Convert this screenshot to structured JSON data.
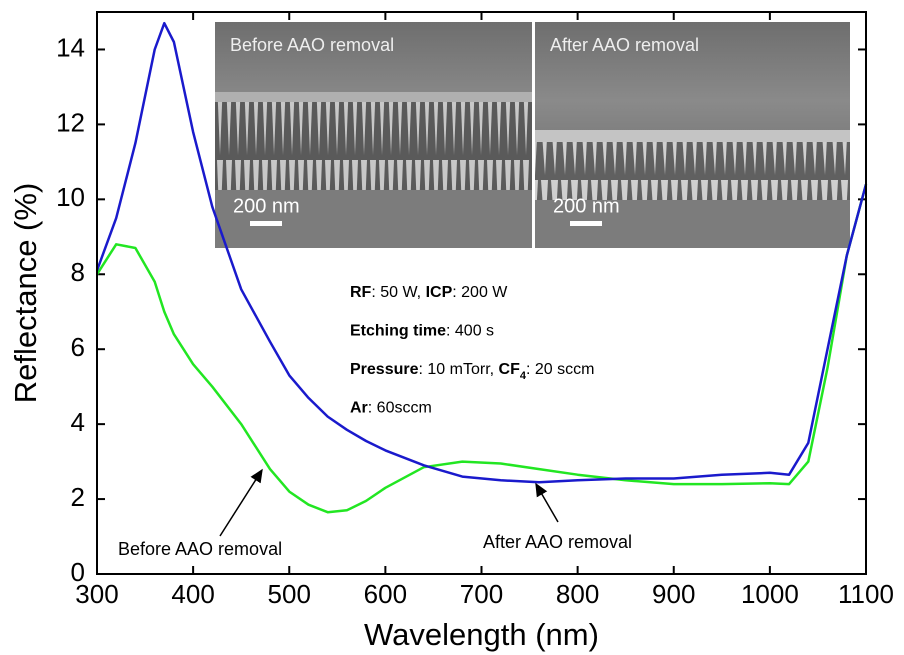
{
  "chart_data": {
    "type": "line",
    "xlabel": "Wavelength (nm)",
    "ylabel": "Reflectance (%)",
    "x": [
      300,
      320,
      340,
      360,
      370,
      380,
      400,
      420,
      450,
      480,
      500,
      520,
      540,
      560,
      580,
      600,
      640,
      680,
      720,
      760,
      800,
      850,
      900,
      950,
      1000,
      1020,
      1040,
      1060,
      1080,
      1100
    ],
    "series": [
      {
        "name": "Before AAO removal",
        "color": "#22e622",
        "values": [
          8.0,
          8.8,
          8.7,
          7.8,
          7.0,
          6.4,
          5.6,
          5.0,
          4.0,
          2.8,
          2.2,
          1.85,
          1.65,
          1.7,
          1.95,
          2.3,
          2.85,
          3.0,
          2.95,
          2.8,
          2.65,
          2.5,
          2.4,
          2.4,
          2.42,
          2.4,
          3.0,
          5.5,
          8.5,
          10.4
        ]
      },
      {
        "name": "After AAO removal",
        "color": "#1a1acc",
        "values": [
          8.1,
          9.5,
          11.5,
          14.0,
          14.7,
          14.2,
          11.8,
          9.8,
          7.6,
          6.2,
          5.3,
          4.7,
          4.2,
          3.85,
          3.55,
          3.3,
          2.9,
          2.6,
          2.5,
          2.45,
          2.5,
          2.55,
          2.55,
          2.65,
          2.7,
          2.65,
          3.5,
          6.0,
          8.5,
          10.4
        ]
      }
    ],
    "xlim": [
      300,
      1100
    ],
    "xticks": [
      300,
      400,
      500,
      600,
      700,
      800,
      900,
      1000,
      1100
    ],
    "ylim": [
      0,
      15
    ],
    "yticks": [
      0,
      2,
      4,
      6,
      8,
      10,
      12,
      14
    ],
    "conditions": [
      [
        {
          "text": "RF",
          "bold": true
        },
        {
          "text": ": 50 W, "
        },
        {
          "text": "ICP",
          "bold": true
        },
        {
          "text": ": 200 W"
        }
      ],
      [
        {
          "text": "Etching time",
          "bold": true
        },
        {
          "text": ": 400 s"
        }
      ],
      [
        {
          "text": "Pressure",
          "bold": true
        },
        {
          "text": ": 10 mTorr, "
        },
        {
          "text": "CF",
          "bold": true
        },
        {
          "text": "4",
          "bold": true,
          "sub": true
        },
        {
          "text": ": 20 sccm"
        }
      ],
      [
        {
          "text": "Ar",
          "bold": true
        },
        {
          "text": ": 60sccm"
        }
      ]
    ],
    "inset": [
      {
        "label": "Before AAO removal",
        "scale": "200 nm"
      },
      {
        "label": "After AAO removal",
        "scale": "200 nm"
      }
    ]
  }
}
